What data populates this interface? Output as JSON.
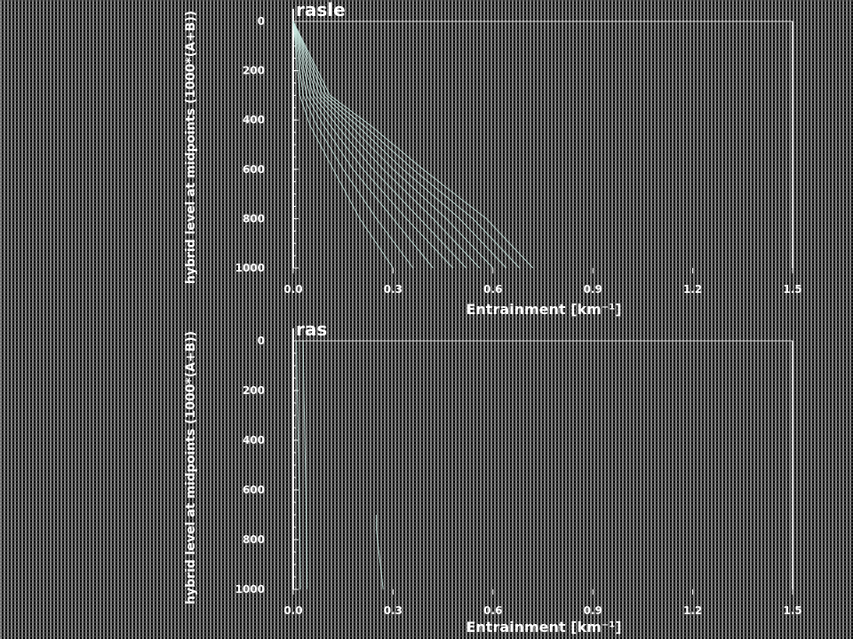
{
  "chart_data": [
    {
      "type": "line",
      "title": "rasle",
      "xlabel": "Entrainment [km⁻¹]",
      "ylabel": "hybrid level at midpoints (1000*(A+B))",
      "xlim": [
        0.0,
        1.5
      ],
      "ylim": [
        1000,
        0
      ],
      "y_inverted": true,
      "xticks": [
        "0.0",
        "0.3",
        "0.6",
        "0.9",
        "1.2",
        "1.5"
      ],
      "yticks": [
        "0",
        "200",
        "400",
        "600",
        "800",
        "1000"
      ],
      "grid": true,
      "line_color": "#c9e8e0",
      "series": [
        {
          "x": [
            0.0,
            0.02,
            0.05,
            0.12,
            0.2,
            0.3
          ],
          "y": [
            0,
            300,
            420,
            600,
            800,
            1000
          ]
        },
        {
          "x": [
            0.0,
            0.03,
            0.07,
            0.15,
            0.25,
            0.36
          ],
          "y": [
            0,
            300,
            420,
            600,
            800,
            1000
          ]
        },
        {
          "x": [
            0.0,
            0.04,
            0.09,
            0.18,
            0.3,
            0.42
          ],
          "y": [
            0,
            300,
            420,
            600,
            800,
            1000
          ]
        },
        {
          "x": [
            0.0,
            0.05,
            0.11,
            0.21,
            0.34,
            0.48
          ],
          "y": [
            0,
            300,
            420,
            600,
            800,
            1000
          ]
        },
        {
          "x": [
            0.0,
            0.06,
            0.13,
            0.24,
            0.38,
            0.52
          ],
          "y": [
            0,
            300,
            420,
            600,
            800,
            1000
          ]
        },
        {
          "x": [
            0.0,
            0.07,
            0.15,
            0.27,
            0.42,
            0.56
          ],
          "y": [
            0,
            300,
            420,
            600,
            800,
            1000
          ]
        },
        {
          "x": [
            0.0,
            0.08,
            0.17,
            0.3,
            0.46,
            0.6
          ],
          "y": [
            0,
            300,
            420,
            600,
            800,
            1000
          ]
        },
        {
          "x": [
            0.0,
            0.09,
            0.19,
            0.33,
            0.5,
            0.64
          ],
          "y": [
            0,
            300,
            420,
            600,
            800,
            1000
          ]
        },
        {
          "x": [
            0.0,
            0.1,
            0.21,
            0.36,
            0.54,
            0.68
          ],
          "y": [
            0,
            300,
            420,
            600,
            800,
            1000
          ]
        },
        {
          "x": [
            0.0,
            0.11,
            0.23,
            0.39,
            0.58,
            0.72
          ],
          "y": [
            0,
            300,
            420,
            600,
            800,
            1000
          ]
        }
      ]
    },
    {
      "type": "line",
      "title": "ras",
      "xlabel": "Entrainment [km⁻¹]",
      "ylabel": "hybrid level at midpoints (1000*(A+B))",
      "xlim": [
        0.0,
        1.5
      ],
      "ylim": [
        1000,
        0
      ],
      "y_inverted": true,
      "xticks": [
        "0.0",
        "0.3",
        "0.6",
        "0.9",
        "1.2",
        "1.5"
      ],
      "yticks": [
        "0",
        "200",
        "400",
        "600",
        "800",
        "1000"
      ],
      "grid": true,
      "line_color": "#c9e8e0",
      "series": [
        {
          "x": [
            0.01,
            0.012,
            0.015,
            0.018,
            0.02,
            0.022
          ],
          "y": [
            0,
            200,
            400,
            600,
            800,
            1000
          ]
        },
        {
          "x": [
            0.03,
            0.032,
            0.035,
            0.038,
            0.04,
            0.042
          ],
          "y": [
            0,
            200,
            400,
            600,
            800,
            1000
          ]
        },
        {
          "x": [
            0.25,
            0.25,
            0.255,
            0.26,
            0.265,
            0.27
          ],
          "y": [
            700,
            760,
            820,
            880,
            940,
            1000
          ]
        }
      ]
    }
  ]
}
